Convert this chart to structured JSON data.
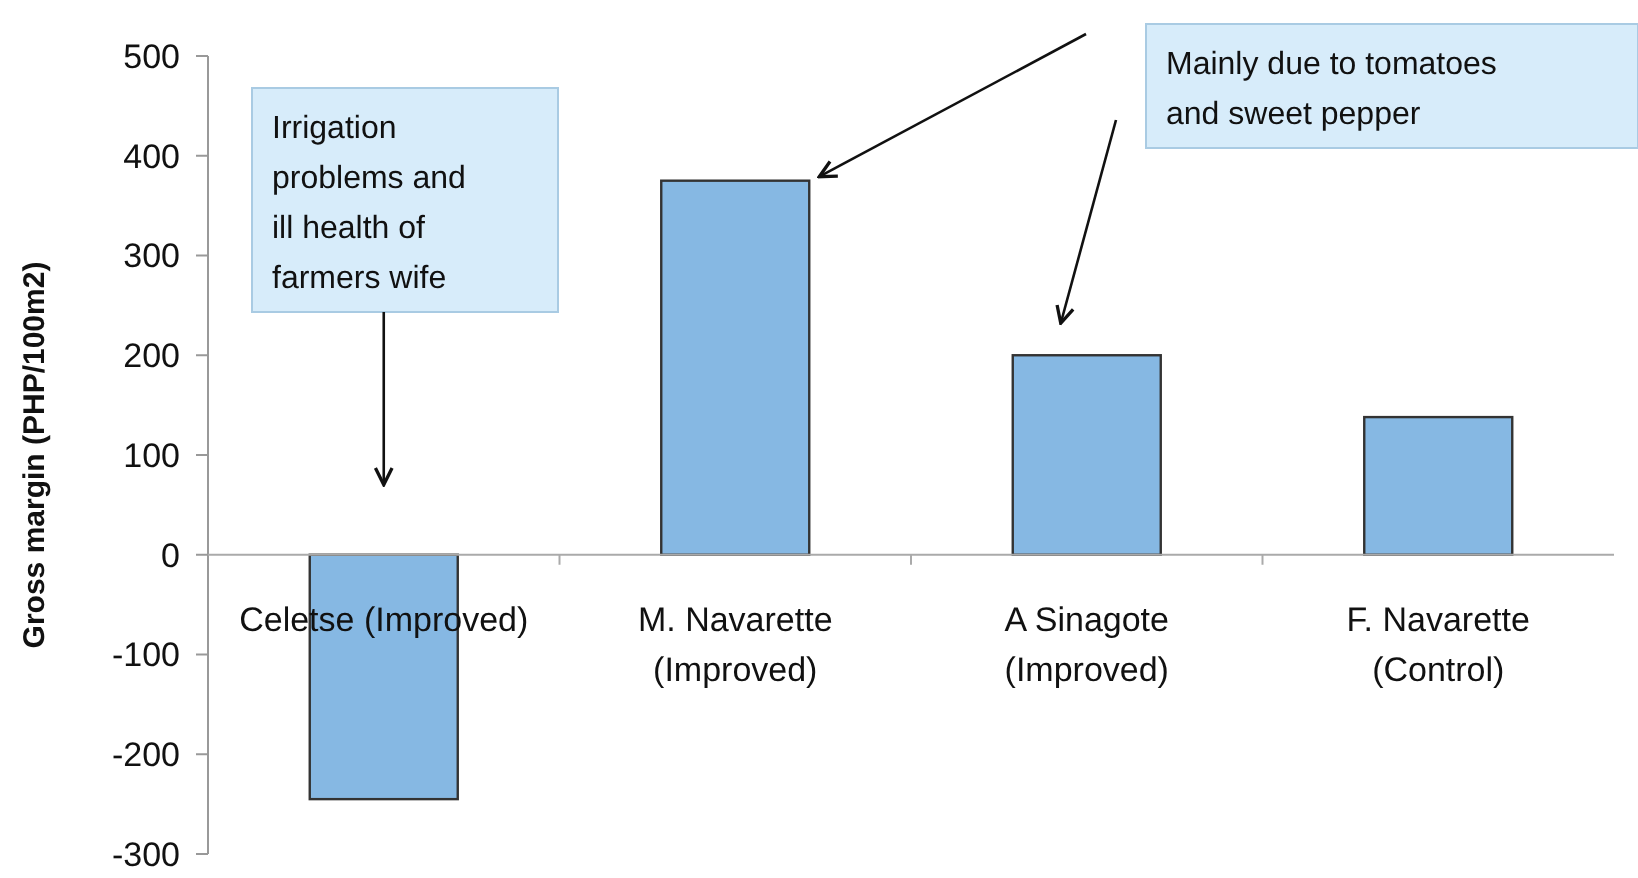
{
  "chart_data": {
    "type": "bar",
    "ylabel": "Gross margin (PHP/100m2)",
    "categories": [
      "Celetse (Improved)",
      "M. Navarette (Improved)",
      "A Sinagote (Improved)",
      "F. Navarette (Control)"
    ],
    "values": [
      -245,
      375,
      200,
      138
    ],
    "color": "#86b8e3",
    "ylim": [
      -300,
      500
    ],
    "yticks": [
      -300,
      -200,
      -100,
      0,
      100,
      200,
      300,
      400,
      500
    ],
    "grid": false,
    "annotations": [
      "Irrigation problems and ill health of farmers wife",
      "Mainly due to tomatoes and sweet pepper"
    ]
  }
}
